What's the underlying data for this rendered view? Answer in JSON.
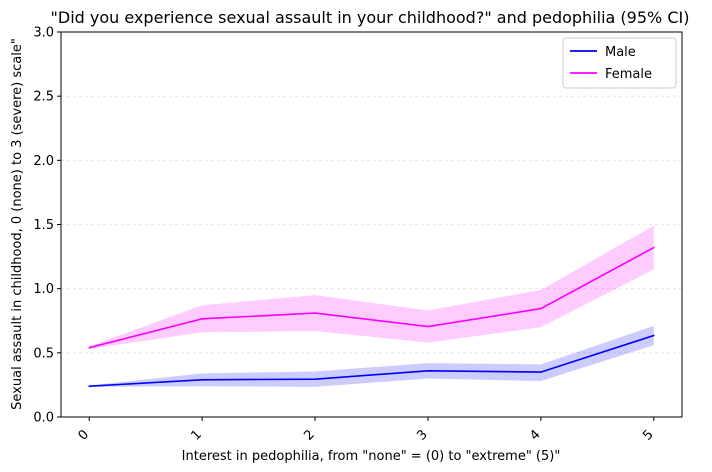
{
  "chart_data": {
    "type": "line",
    "title": "\"Did you experience sexual assault in your childhood?\" and pedophilia (95% CI)",
    "xlabel": "Interest in pedophilia, from \"none\" = (0) to \"extreme\" (5)\"",
    "ylabel": "Sexual assault in childhood, 0 (none) to 3 (severe) scale\"",
    "x": [
      0,
      1,
      2,
      3,
      4,
      5
    ],
    "x_tick_labels": [
      "0",
      "1",
      "2",
      "3",
      "4",
      "5"
    ],
    "ylim": [
      0,
      3
    ],
    "y_ticks": [
      0,
      0.5,
      1.0,
      1.5,
      2.0,
      2.5,
      3.0
    ],
    "y_tick_labels": [
      "0.0",
      "0.5",
      "1.0",
      "1.5",
      "2.0",
      "2.5",
      "3.0"
    ],
    "grid": "horizontal",
    "legend_position": "top-right",
    "series": [
      {
        "name": "Male",
        "color": "#0000ff",
        "values": [
          0.24,
          0.29,
          0.295,
          0.36,
          0.35,
          0.635
        ],
        "ci_lower": [
          0.235,
          0.24,
          0.235,
          0.3,
          0.28,
          0.56
        ],
        "ci_upper": [
          0.245,
          0.34,
          0.355,
          0.42,
          0.41,
          0.71
        ]
      },
      {
        "name": "Female",
        "color": "#ff00ff",
        "values": [
          0.54,
          0.765,
          0.81,
          0.705,
          0.845,
          1.32
        ],
        "ci_lower": [
          0.53,
          0.66,
          0.67,
          0.58,
          0.7,
          1.15
        ],
        "ci_upper": [
          0.55,
          0.87,
          0.95,
          0.83,
          0.99,
          1.49
        ]
      }
    ]
  }
}
